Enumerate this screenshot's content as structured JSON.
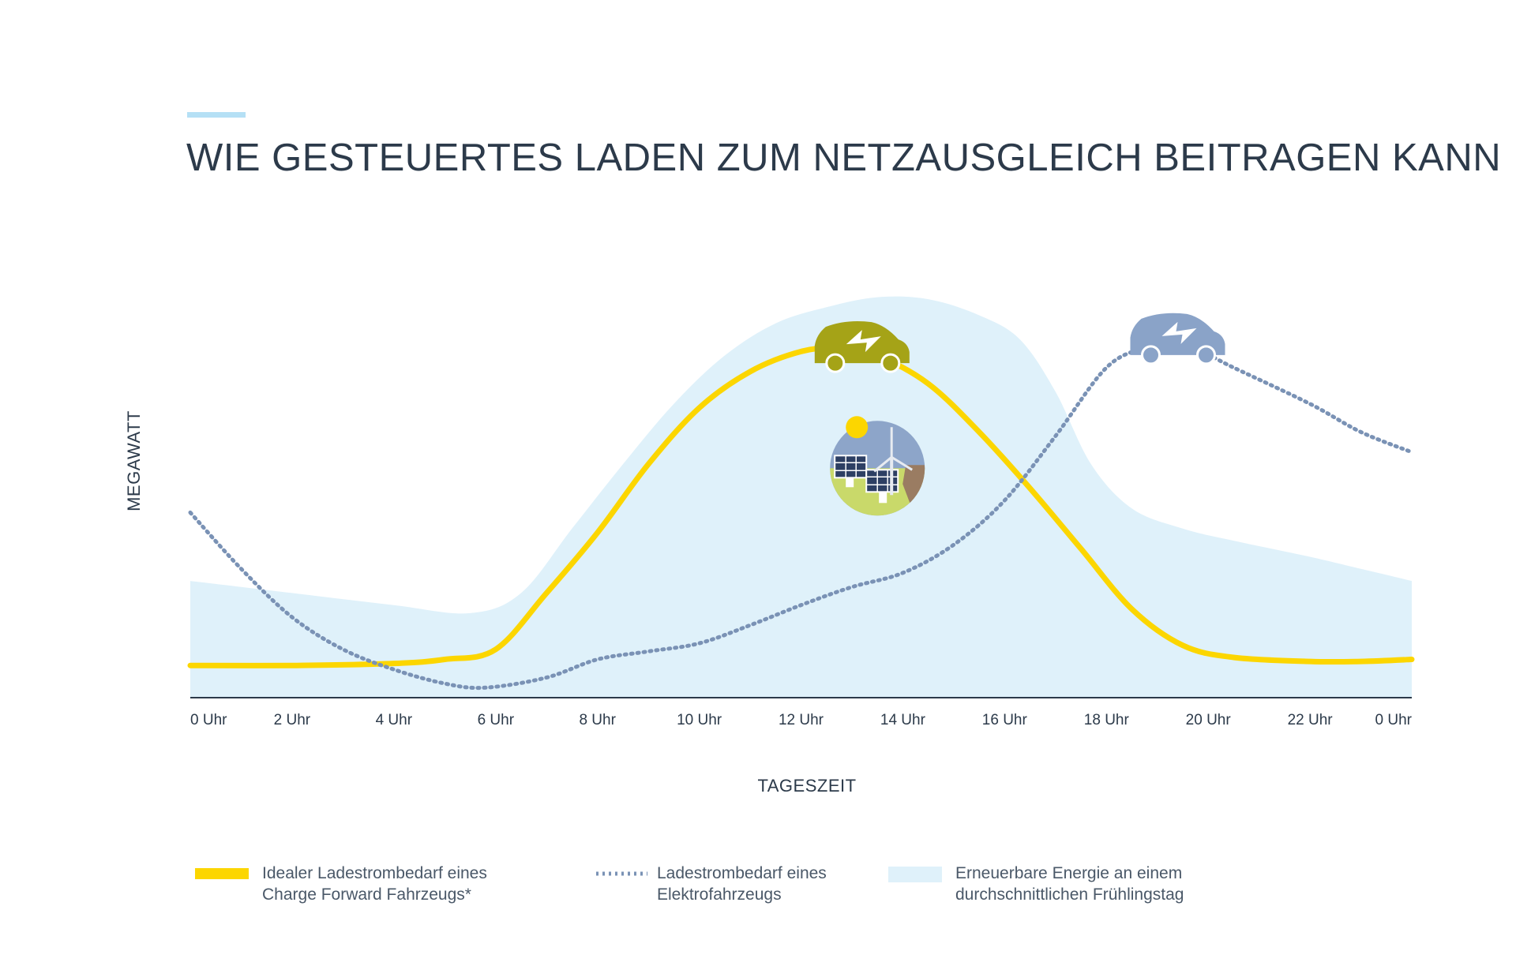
{
  "chart_data": {
    "type": "area",
    "title": "WIE GESTEUERTES LADEN ZUM NETZAUSGLEICH BEITRAGEN KANN",
    "xlabel": "TAGESZEIT",
    "ylabel": "MEGAWATT",
    "xlim": [
      0,
      24
    ],
    "ylim": [
      0,
      100
    ],
    "grid": false,
    "y_tick_labels": false,
    "x_ticks": [
      {
        "value": 0,
        "label": "0 Uhr"
      },
      {
        "value": 2,
        "label": "2 Uhr"
      },
      {
        "value": 4,
        "label": "4 Uhr"
      },
      {
        "value": 6,
        "label": "6 Uhr"
      },
      {
        "value": 8,
        "label": "8 Uhr"
      },
      {
        "value": 10,
        "label": "10 Uhr"
      },
      {
        "value": 12,
        "label": "12 Uhr"
      },
      {
        "value": 14,
        "label": "14 Uhr"
      },
      {
        "value": 16,
        "label": "16 Uhr"
      },
      {
        "value": 18,
        "label": "18 Uhr"
      },
      {
        "value": 20,
        "label": "20 Uhr"
      },
      {
        "value": 22,
        "label": "22 Uhr"
      },
      {
        "value": 24,
        "label": "0 Uhr"
      }
    ],
    "legend_position": "bottom",
    "series": [
      {
        "name": "Erneuerbare Energie an einem durchschnittlichen Frühlingstag",
        "legend_lines": [
          "Erneuerbare Energie an einem",
          "durchschnittlichen Frühlingstag"
        ],
        "kind": "area",
        "color": "#dff1fa",
        "x": [
          0,
          2,
          4,
          5.5,
          6.5,
          7.5,
          8.5,
          9.5,
          10.5,
          11.5,
          12.5,
          13.5,
          14.5,
          15.5,
          16.3,
          17,
          17.7,
          18.5,
          19.5,
          20.5,
          22,
          23,
          24
        ],
        "y": [
          29,
          26,
          23,
          21,
          26,
          42,
          58,
          73,
          85,
          93,
          97,
          99.5,
          99,
          95,
          89,
          76,
          58,
          47,
          42,
          39,
          35,
          32,
          29
        ]
      },
      {
        "name": "Idealer Ladestrombedarf eines Charge Forward Fahrzeugs*",
        "legend_lines": [
          "Idealer Ladestrombedarf eines",
          "Charge Forward Fahrzeugs*"
        ],
        "kind": "line",
        "color": "#fcd600",
        "x": [
          0,
          2,
          4,
          5,
          6,
          7,
          8,
          9,
          10,
          11,
          12,
          12.8,
          13.5,
          14.5,
          15.5,
          16.5,
          17.5,
          18.5,
          19.5,
          20.5,
          22,
          23,
          24
        ],
        "y": [
          8,
          8,
          8.5,
          9.5,
          12,
          26,
          41,
          58,
          72,
          81,
          86,
          87,
          85,
          78,
          66,
          52,
          37,
          22,
          13,
          10,
          9,
          9,
          9.5
        ]
      },
      {
        "name": "Ladestrombedarf eines Elektrofahrzeugs",
        "legend_lines": [
          "Ladestrombedarf eines",
          "Elektrofahrzeugs"
        ],
        "kind": "dotted-line",
        "color": "#7a92b5",
        "x": [
          0,
          1,
          2,
          3,
          4,
          5,
          5.8,
          7,
          8,
          9,
          10,
          11,
          12,
          13,
          14,
          15,
          16,
          17,
          18,
          18.8,
          19.5,
          20.5,
          22,
          23,
          24
        ],
        "y": [
          46,
          32,
          20,
          12,
          7,
          3.5,
          2.5,
          5,
          9.5,
          11.5,
          13.5,
          18,
          23,
          27.5,
          31,
          38,
          49,
          65,
          82,
          87,
          88,
          82,
          73,
          66,
          61
        ]
      }
    ],
    "annotations": [
      {
        "icon": "ev-car-icon",
        "at_series": "Idealer Ladestrombedarf eines Charge Forward Fahrzeugs*",
        "x": 13.2,
        "color": "#a5a317"
      },
      {
        "icon": "ev-car-icon",
        "at_series": "Ladestrombedarf eines Elektrofahrzeugs",
        "x": 19.4,
        "color": "#8aa3c8"
      },
      {
        "icon": "renewable-energy-icon",
        "x": 13.5,
        "y": 57
      }
    ],
    "colors": {
      "text": "#2c3a4a",
      "axis": "#2c3a4a",
      "title_accent": "#b5e0f5"
    }
  }
}
